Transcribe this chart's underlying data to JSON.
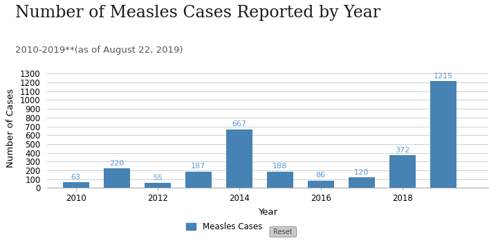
{
  "title": "Number of Measles Cases Reported by Year",
  "subtitle": "2010-2019**(as of August 22, 2019)",
  "xlabel": "Year",
  "ylabel": "Number of Cases",
  "years": [
    2010,
    2011,
    2012,
    2013,
    2014,
    2015,
    2016,
    2017,
    2018,
    2019
  ],
  "values": [
    63,
    220,
    55,
    187,
    667,
    188,
    86,
    120,
    372,
    1215
  ],
  "bar_color": "#4682b4",
  "label_color": "#5b9bd5",
  "background_color": "#ffffff",
  "yticks": [
    0,
    100,
    200,
    300,
    400,
    500,
    600,
    700,
    800,
    900,
    1000,
    1100,
    1200,
    1300
  ],
  "ylim": [
    0,
    1370
  ],
  "legend_label": "Measles Cases",
  "title_fontsize": 17,
  "subtitle_fontsize": 9.5,
  "axis_label_fontsize": 9.5,
  "bar_label_fontsize": 8,
  "tick_fontsize": 8.5,
  "xtick_labels": [
    2010,
    2012,
    2014,
    2016,
    2018
  ],
  "xticks": [
    2010,
    2012,
    2014,
    2016,
    2018
  ]
}
